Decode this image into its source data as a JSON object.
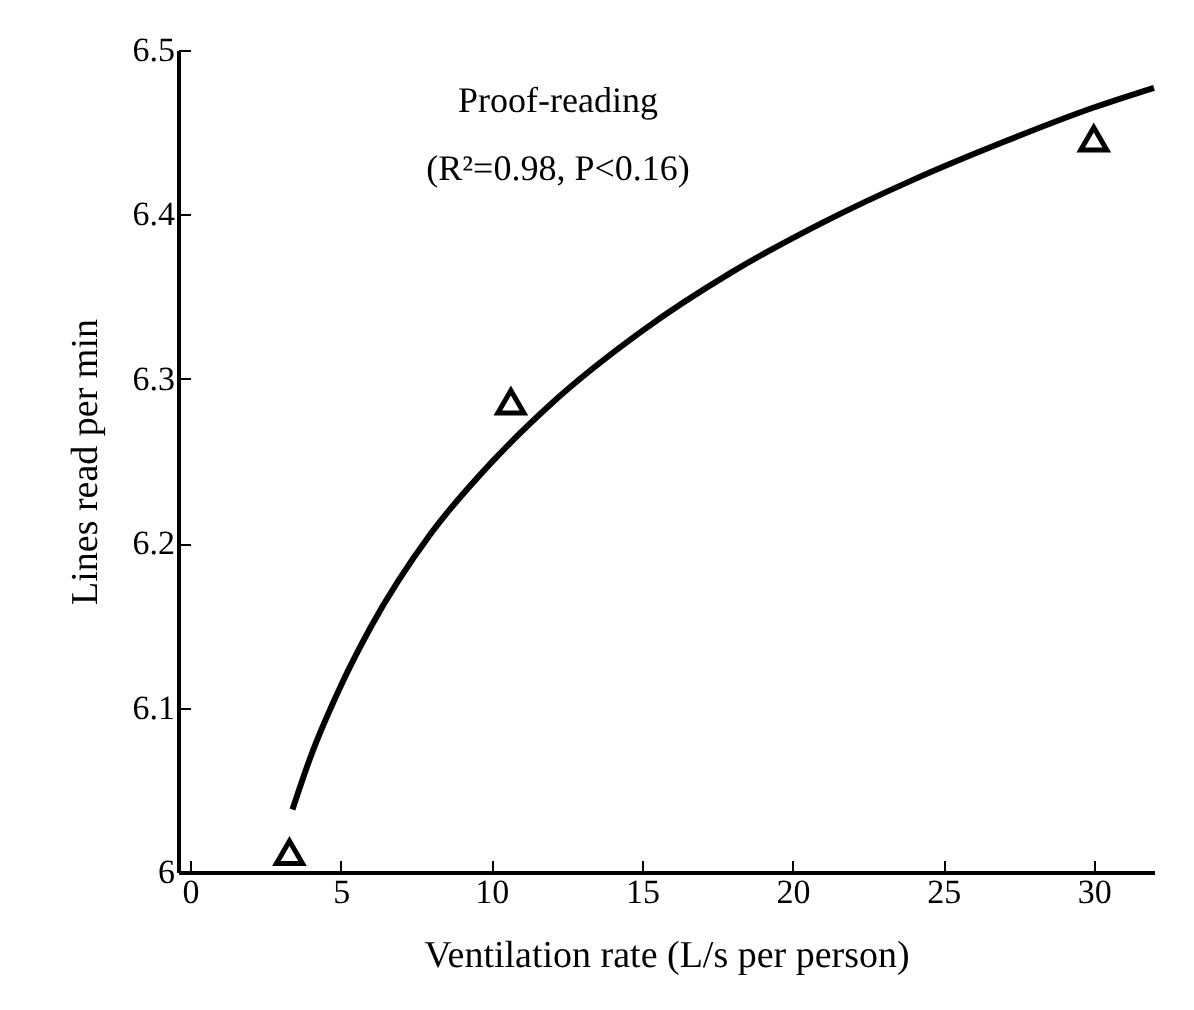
{
  "chart_data": {
    "type": "scatter",
    "xlabel": "Ventilation rate (L/s per person)",
    "ylabel": "Lines read per min",
    "annotations": [
      "Proof-reading",
      "(R²=0.98, P<0.16)"
    ],
    "xlim": [
      -0.4,
      32
    ],
    "xticks": [
      0,
      5,
      10,
      15,
      20,
      25,
      30
    ],
    "ylim": [
      6,
      6.5
    ],
    "yticks": [
      6,
      6.1,
      6.2,
      6.3,
      6.4,
      6.5
    ],
    "grid": false,
    "series": [
      {
        "marker": "triangle",
        "color": "#000000",
        "x": [
          3.3,
          10.65,
          30
        ],
        "values": [
          6.012,
          6.286,
          6.446
        ]
      },
      {
        "type": "line",
        "marker": "none",
        "line_style": "solid",
        "color": "#000000",
        "x": [
          3.4,
          4,
          5,
          6,
          8,
          10,
          12,
          15,
          18,
          21,
          24,
          27,
          30,
          32
        ],
        "values": [
          6.038,
          6.07,
          6.113,
          6.149,
          6.206,
          6.249,
          6.285,
          6.329,
          6.365,
          6.395,
          6.421,
          6.444,
          6.465,
          6.477
        ]
      }
    ]
  }
}
